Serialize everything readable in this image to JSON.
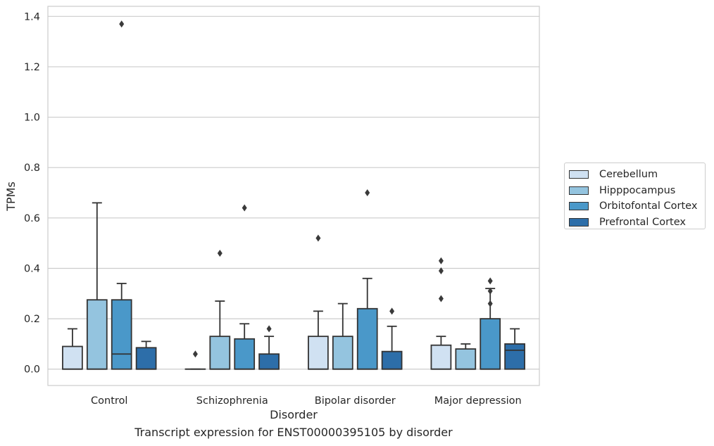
{
  "caption": "Transcript expression for ENST00000395105 by disorder",
  "chart_data": {
    "type": "box",
    "title": "",
    "xlabel": "Disorder",
    "ylabel": "TPMs",
    "ylim": [
      -0.065,
      1.44
    ],
    "yticks": [
      0.0,
      0.2,
      0.4,
      0.6,
      0.8,
      1.0,
      1.2,
      1.4
    ],
    "ytick_labels": [
      "0.0",
      "0.2",
      "0.4",
      "0.6",
      "0.8",
      "1.0",
      "1.2",
      "1.4"
    ],
    "grid": "horizontal",
    "legend_position": "right",
    "categories": [
      "Control",
      "Schizophrenia",
      "Bipolar disorder",
      "Major depression"
    ],
    "series": [
      {
        "name": "Cerebellum",
        "color": "#d0e1f2",
        "boxes": [
          {
            "q1": 0.0,
            "median": 0.0,
            "q3": 0.09,
            "whisker_low": 0.0,
            "whisker_high": 0.16,
            "outliers": []
          },
          {
            "q1": 0.0,
            "median": 0.0,
            "q3": 0.0,
            "whisker_low": 0.0,
            "whisker_high": 0.0,
            "outliers": [
              0.06
            ]
          },
          {
            "q1": 0.0,
            "median": 0.0,
            "q3": 0.13,
            "whisker_low": 0.0,
            "whisker_high": 0.23,
            "outliers": [
              0.52
            ]
          },
          {
            "q1": 0.0,
            "median": 0.0,
            "q3": 0.095,
            "whisker_low": 0.0,
            "whisker_high": 0.13,
            "outliers": [
              0.28,
              0.39,
              0.43
            ]
          }
        ]
      },
      {
        "name": "Hipppocampus",
        "color": "#94c4df",
        "boxes": [
          {
            "q1": 0.0,
            "median": 0.0,
            "q3": 0.275,
            "whisker_low": 0.0,
            "whisker_high": 0.66,
            "outliers": []
          },
          {
            "q1": 0.0,
            "median": 0.0,
            "q3": 0.13,
            "whisker_low": 0.0,
            "whisker_high": 0.27,
            "outliers": [
              0.46
            ]
          },
          {
            "q1": 0.0,
            "median": 0.0,
            "q3": 0.13,
            "whisker_low": 0.0,
            "whisker_high": 0.26,
            "outliers": []
          },
          {
            "q1": 0.0,
            "median": 0.0,
            "q3": 0.08,
            "whisker_low": 0.0,
            "whisker_high": 0.1,
            "outliers": []
          }
        ]
      },
      {
        "name": "Orbitofontal Cortex",
        "color": "#4a98c9",
        "boxes": [
          {
            "q1": 0.0,
            "median": 0.06,
            "q3": 0.275,
            "whisker_low": 0.0,
            "whisker_high": 0.34,
            "outliers": [
              1.37
            ]
          },
          {
            "q1": 0.0,
            "median": 0.0,
            "q3": 0.12,
            "whisker_low": 0.0,
            "whisker_high": 0.18,
            "outliers": [
              0.64
            ]
          },
          {
            "q1": 0.0,
            "median": 0.0,
            "q3": 0.24,
            "whisker_low": 0.0,
            "whisker_high": 0.36,
            "outliers": [
              0.7
            ]
          },
          {
            "q1": 0.0,
            "median": 0.0,
            "q3": 0.2,
            "whisker_low": 0.0,
            "whisker_high": 0.32,
            "outliers": [
              0.26,
              0.31,
              0.35
            ]
          }
        ]
      },
      {
        "name": "Prefrontal Cortex",
        "color": "#2d6ea9",
        "boxes": [
          {
            "q1": 0.0,
            "median": 0.0,
            "q3": 0.085,
            "whisker_low": 0.0,
            "whisker_high": 0.11,
            "outliers": []
          },
          {
            "q1": 0.0,
            "median": 0.0,
            "q3": 0.06,
            "whisker_low": 0.0,
            "whisker_high": 0.13,
            "outliers": [
              0.16
            ]
          },
          {
            "q1": 0.0,
            "median": 0.0,
            "q3": 0.07,
            "whisker_low": 0.0,
            "whisker_high": 0.17,
            "outliers": [
              0.23
            ]
          },
          {
            "q1": 0.0,
            "median": 0.075,
            "q3": 0.1,
            "whisker_low": 0.0,
            "whisker_high": 0.16,
            "outliers": []
          }
        ]
      }
    ]
  }
}
